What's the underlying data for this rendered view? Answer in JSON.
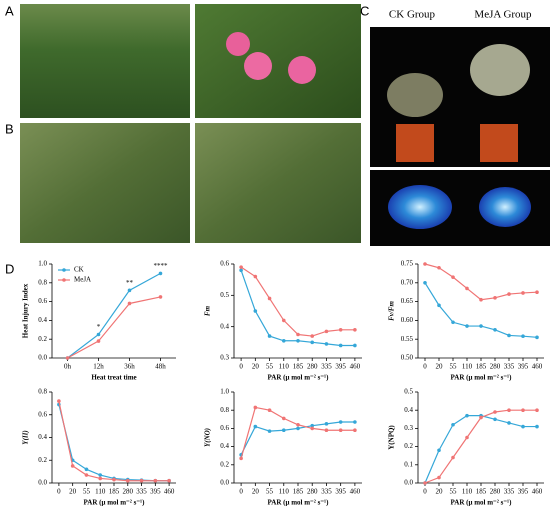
{
  "panel_labels": [
    "A",
    "B",
    "C",
    "D"
  ],
  "group_labels": [
    "CK Group",
    "MeJA Group"
  ],
  "chart_data": [
    {
      "type": "line",
      "xlabel": "Heat treat time",
      "ylabel": "Heat Injury Index",
      "legend": "top-left",
      "categories": [
        "0h",
        "12h",
        "36h",
        "48h"
      ],
      "ylim": [
        0,
        1
      ],
      "yticks": [
        {
          "value": 0,
          "label": "0.0"
        },
        0.2,
        0.4,
        0.6,
        0.8,
        {
          "value": 1,
          "label": "1.0"
        }
      ],
      "annotations": [
        "*",
        "**",
        "****"
      ],
      "series": [
        {
          "name": "CK",
          "color": "#35a7d8",
          "values": [
            0,
            0.25,
            0.72,
            0.9
          ]
        },
        {
          "name": "MeJA",
          "color": "#f07474",
          "values": [
            0,
            0.18,
            0.58,
            0.65
          ]
        }
      ]
    },
    {
      "type": "line",
      "xlabel": "PAR (μ mol m⁻² s⁻¹)",
      "ylabel": "Fm",
      "categories": [
        "0",
        "20",
        "55",
        "110",
        "185",
        "280",
        "335",
        "395",
        "460"
      ],
      "ylim": [
        0.3,
        0.6
      ],
      "yticks": [
        0.3,
        0.4,
        0.5,
        0.6
      ],
      "series": [
        {
          "name": "CK",
          "color": "#35a7d8",
          "values": [
            0.58,
            0.45,
            0.37,
            0.355,
            0.355,
            0.35,
            0.345,
            0.34,
            0.34
          ]
        },
        {
          "name": "MeJA",
          "color": "#f07474",
          "values": [
            0.59,
            0.56,
            0.49,
            0.42,
            0.375,
            0.37,
            0.385,
            0.39,
            0.39
          ]
        }
      ]
    },
    {
      "type": "line",
      "xlabel": "PAR (μ mol m⁻² s⁻¹)",
      "ylabel": "Fv/Fm",
      "categories": [
        "0",
        "20",
        "55",
        "110",
        "185",
        "280",
        "335",
        "395",
        "460"
      ],
      "ylim": [
        0.5,
        0.75
      ],
      "yticks": [
        {
          "value": 0.5,
          "label": "0.50"
        },
        0.55,
        {
          "value": 0.6,
          "label": "0.60"
        },
        0.65,
        {
          "value": 0.7,
          "label": "0.70"
        },
        0.75
      ],
      "series": [
        {
          "name": "CK",
          "color": "#35a7d8",
          "values": [
            0.7,
            0.64,
            0.595,
            0.585,
            0.585,
            0.575,
            0.56,
            0.558,
            0.555
          ]
        },
        {
          "name": "MeJA",
          "color": "#f07474",
          "values": [
            0.75,
            0.74,
            0.715,
            0.685,
            0.655,
            0.66,
            0.67,
            0.673,
            0.675
          ]
        }
      ]
    },
    {
      "type": "line",
      "xlabel": "PAR (μ mol m⁻² s⁻¹)",
      "ylabel": "Y(II)",
      "categories": [
        "0",
        "20",
        "55",
        "110",
        "185",
        "280",
        "335",
        "395",
        "460"
      ],
      "ylim": [
        0,
        0.8
      ],
      "yticks": [
        {
          "value": 0,
          "label": "0.0"
        },
        0.2,
        0.4,
        0.6,
        0.8
      ],
      "series": [
        {
          "name": "CK",
          "color": "#35a7d8",
          "values": [
            0.69,
            0.2,
            0.12,
            0.07,
            0.04,
            0.03,
            0.025,
            0.02,
            0.02
          ]
        },
        {
          "name": "MeJA",
          "color": "#f07474",
          "values": [
            0.72,
            0.15,
            0.07,
            0.04,
            0.03,
            0.02,
            0.02,
            0.02,
            0.02
          ]
        }
      ]
    },
    {
      "type": "line",
      "xlabel": "PAR (μ mol m⁻² s⁻¹)",
      "ylabel": "Y(NO)",
      "categories": [
        "0",
        "20",
        "55",
        "110",
        "185",
        "280",
        "335",
        "395",
        "460"
      ],
      "ylim": [
        0,
        1
      ],
      "yticks": [
        {
          "value": 0,
          "label": "0.0"
        },
        0.2,
        0.4,
        0.6,
        0.8,
        {
          "value": 1,
          "label": "1.0"
        }
      ],
      "series": [
        {
          "name": "CK",
          "color": "#35a7d8",
          "values": [
            0.31,
            0.62,
            0.57,
            0.58,
            0.6,
            0.63,
            0.65,
            0.67,
            0.67
          ]
        },
        {
          "name": "MeJA",
          "color": "#f07474",
          "values": [
            0.27,
            0.83,
            0.8,
            0.71,
            0.64,
            0.6,
            0.58,
            0.58,
            0.58
          ]
        }
      ]
    },
    {
      "type": "line",
      "xlabel": "PAR (μ mol m⁻² s⁻¹)",
      "ylabel": "Y(NPQ)",
      "categories": [
        "0",
        "20",
        "55",
        "110",
        "185",
        "280",
        "335",
        "395",
        "460"
      ],
      "ylim": [
        0,
        0.5
      ],
      "yticks": [
        {
          "value": 0,
          "label": "0.0"
        },
        0.1,
        0.2,
        0.3,
        0.4,
        0.5
      ],
      "series": [
        {
          "name": "CK",
          "color": "#35a7d8",
          "values": [
            0,
            0.18,
            0.32,
            0.37,
            0.37,
            0.35,
            0.33,
            0.31,
            0.31
          ]
        },
        {
          "name": "MeJA",
          "color": "#f07474",
          "values": [
            0,
            0.03,
            0.14,
            0.25,
            0.36,
            0.39,
            0.4,
            0.4,
            0.4
          ]
        }
      ]
    }
  ]
}
